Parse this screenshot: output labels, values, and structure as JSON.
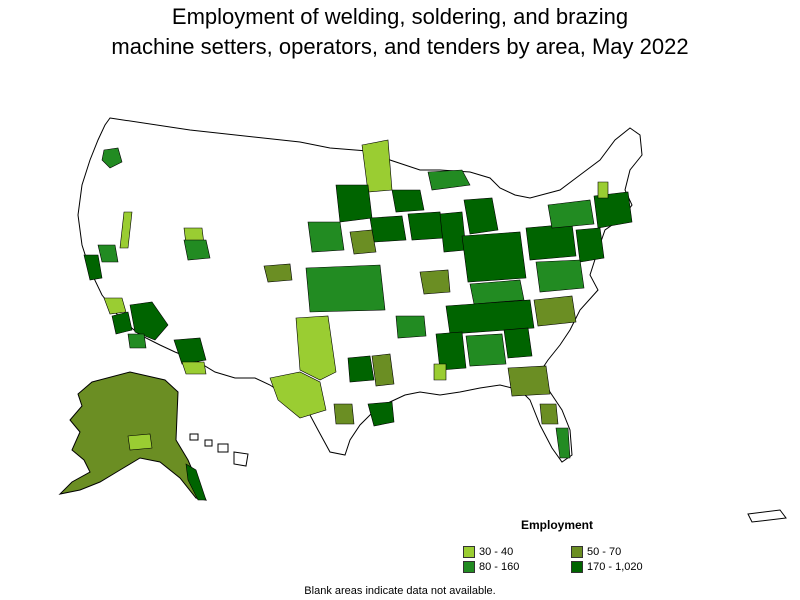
{
  "title": {
    "line1": "Employment of welding, soldering, and brazing",
    "line2": "machine setters, operators, and tenders by area, May 2022"
  },
  "legend": {
    "title": "Employment",
    "items": [
      {
        "label": "30 - 40",
        "color": "#9acd32"
      },
      {
        "label": "50 - 70",
        "color": "#6b8e23"
      },
      {
        "label": "80 - 160",
        "color": "#228b22"
      },
      {
        "label": "170 - 1,020",
        "color": "#006400"
      }
    ]
  },
  "footnote": "Blank areas indicate data not available.",
  "colors": {
    "blank": "#ffffff",
    "border": "#000000"
  }
}
